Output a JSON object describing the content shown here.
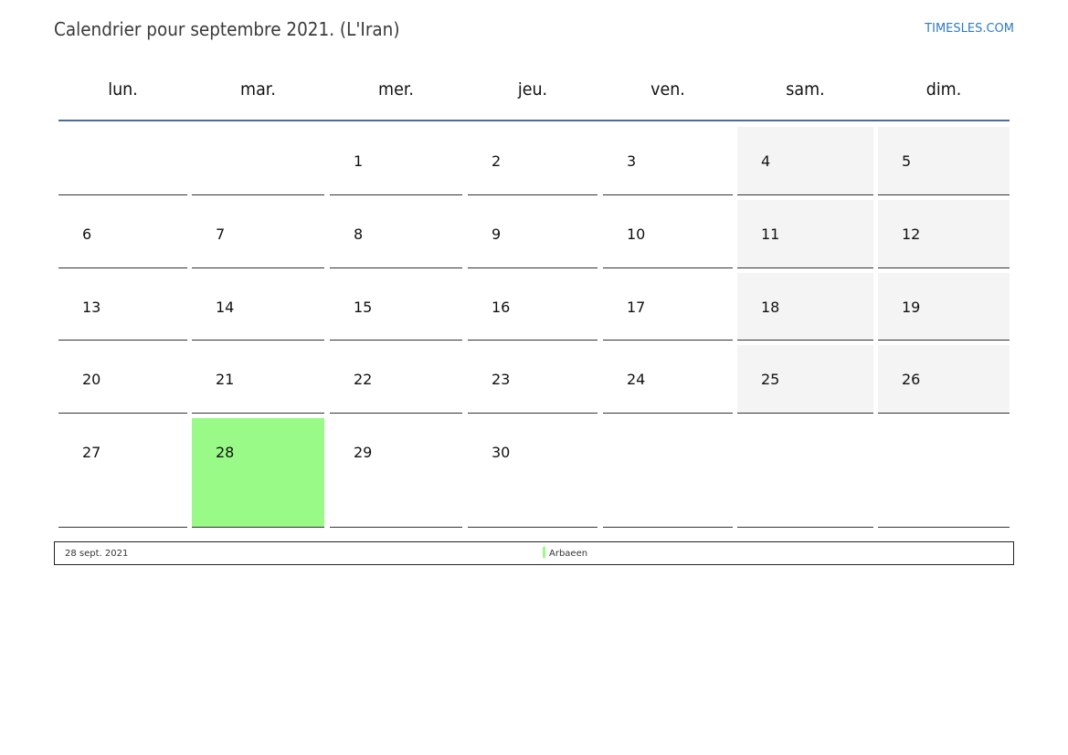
{
  "title": "Calendrier pour septembre 2021. (L'Iran)",
  "site": "TIMESLES.COM",
  "weekdays": [
    "lun.",
    "mar.",
    "mer.",
    "jeu.",
    "ven.",
    "sam.",
    "dim."
  ],
  "weeks": [
    [
      "",
      "",
      "1",
      "2",
      "3",
      "4",
      "5"
    ],
    [
      "6",
      "7",
      "8",
      "9",
      "10",
      "11",
      "12"
    ],
    [
      "13",
      "14",
      "15",
      "16",
      "17",
      "18",
      "19"
    ],
    [
      "20",
      "21",
      "22",
      "23",
      "24",
      "25",
      "26"
    ],
    [
      "27",
      "28",
      "29",
      "30",
      "",
      "",
      ""
    ]
  ],
  "holidays": [
    {
      "day": "28",
      "date_label": "28 sept. 2021",
      "name": "Arbaeen"
    }
  ],
  "colors": {
    "holiday": "#99fa88",
    "weekend": "#f4f4f4",
    "header_line": "#4d6d96",
    "site_link": "#2f7bbf"
  }
}
